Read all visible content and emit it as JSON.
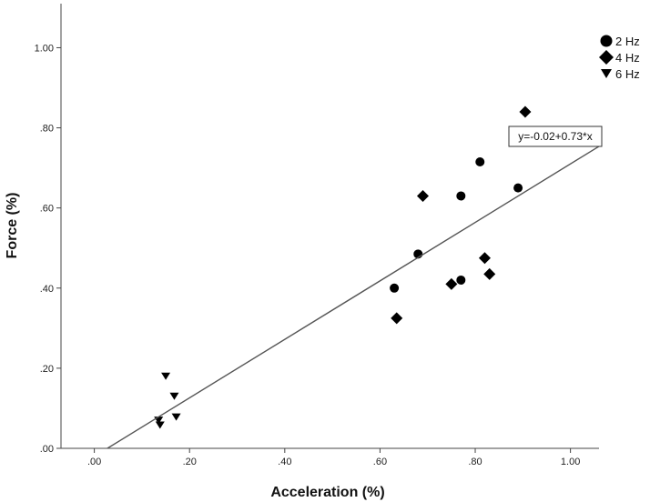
{
  "chart_data": {
    "type": "scatter",
    "xlabel": "Acceleration (%)",
    "ylabel": "Force (%)",
    "xlim": [
      -0.07,
      1.06
    ],
    "ylim": [
      0,
      1.11
    ],
    "x_ticks": [
      0.0,
      0.2,
      0.4,
      0.6,
      0.8,
      1.0
    ],
    "x_tick_labels": [
      ".00",
      ".20",
      ".40",
      ".60",
      ".80",
      "1.00"
    ],
    "y_ticks": [
      0.0,
      0.2,
      0.4,
      0.6,
      0.8,
      1.0
    ],
    "y_tick_labels": [
      ".00",
      ".20",
      ".40",
      ".60",
      ".80",
      "1.00"
    ],
    "grid": false,
    "legend_position": "top-right",
    "series": [
      {
        "name": "2 Hz",
        "marker": "circle",
        "points": [
          {
            "x": 0.63,
            "y": 0.4
          },
          {
            "x": 0.68,
            "y": 0.485
          },
          {
            "x": 0.77,
            "y": 0.42
          },
          {
            "x": 0.77,
            "y": 0.63
          },
          {
            "x": 0.81,
            "y": 0.715
          },
          {
            "x": 0.89,
            "y": 0.65
          }
        ]
      },
      {
        "name": "4 Hz",
        "marker": "diamond",
        "points": [
          {
            "x": 0.635,
            "y": 0.325
          },
          {
            "x": 0.69,
            "y": 0.63
          },
          {
            "x": 0.75,
            "y": 0.41
          },
          {
            "x": 0.82,
            "y": 0.475
          },
          {
            "x": 0.83,
            "y": 0.435
          },
          {
            "x": 0.905,
            "y": 0.84
          }
        ]
      },
      {
        "name": "6 Hz",
        "marker": "triangle-down",
        "points": [
          {
            "x": 0.135,
            "y": 0.07
          },
          {
            "x": 0.138,
            "y": 0.058
          },
          {
            "x": 0.15,
            "y": 0.18
          },
          {
            "x": 0.168,
            "y": 0.13
          },
          {
            "x": 0.172,
            "y": 0.078
          }
        ]
      }
    ],
    "fit_line": {
      "intercept": -0.02,
      "slope": 0.73,
      "label": "y=-0.02+0.73*x"
    },
    "colors": {
      "marker": "#000000",
      "line": "#555555",
      "axis": "#444444"
    }
  }
}
